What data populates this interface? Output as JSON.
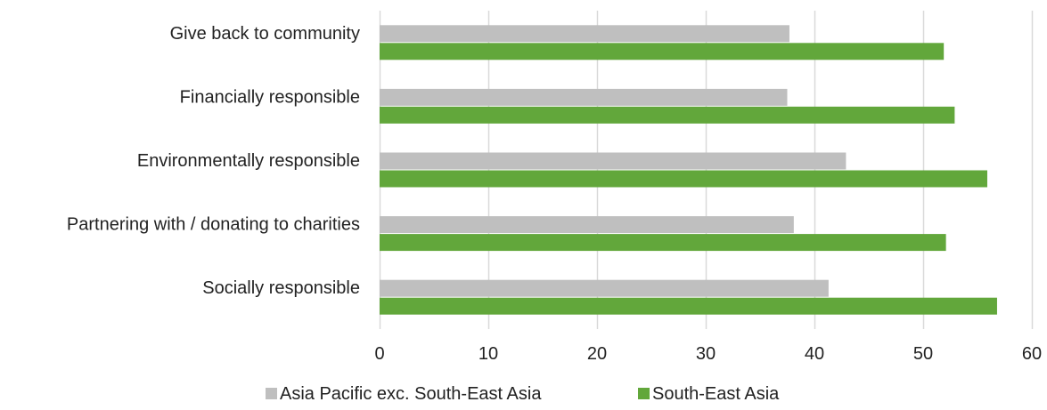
{
  "chart_data": {
    "type": "bar",
    "orientation": "horizontal",
    "categories": [
      "Give back to community",
      "Financially responsible",
      "Environmentally responsible",
      "Partnering with / donating to charities",
      "Socially responsible"
    ],
    "series": [
      {
        "name": "Asia Pacific exc. South-East Asia",
        "color": "#bfbfbf",
        "values": [
          37.7,
          37.5,
          42.9,
          38.1,
          41.3
        ]
      },
      {
        "name": "South-East Asia",
        "color": "#62a73b",
        "values": [
          51.9,
          52.9,
          55.9,
          52.1,
          56.8
        ]
      }
    ],
    "xlim": [
      0,
      60
    ],
    "xticks": [
      0,
      10,
      20,
      30,
      40,
      50,
      60
    ],
    "grid": "vertical",
    "legend": "bottom-center",
    "title": "",
    "xlabel": "",
    "ylabel": ""
  }
}
